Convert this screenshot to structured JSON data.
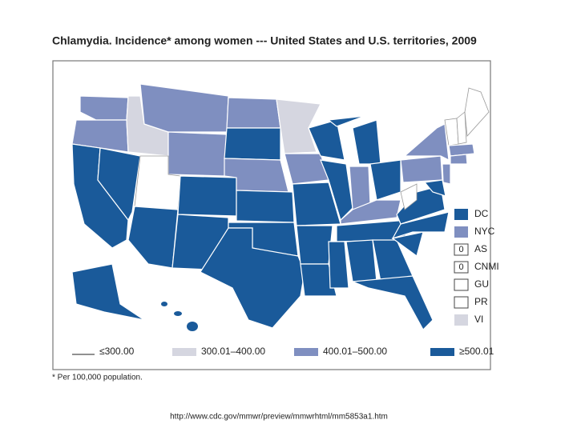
{
  "title": "Chlamydia. Incidence* among women --- United States and U.S. territories, 2009",
  "territory_legend": [
    {
      "label": "DC"
    },
    {
      "label": "NYC"
    },
    {
      "box": "0",
      "label": "AS"
    },
    {
      "box": "0",
      "label": "CNMI"
    },
    {
      "label": "GU"
    },
    {
      "label": "PR"
    },
    {
      "label": "VI"
    }
  ],
  "range_legend": [
    "≤300.00",
    "300.01–400.00",
    "400.01–500.00",
    "≥500.01"
  ],
  "footnote": "* Per 100,000 population.",
  "source_url": "http://www.cdc.gov/mmwr/preview/mmwrhtml/mm5853a1.htm"
}
